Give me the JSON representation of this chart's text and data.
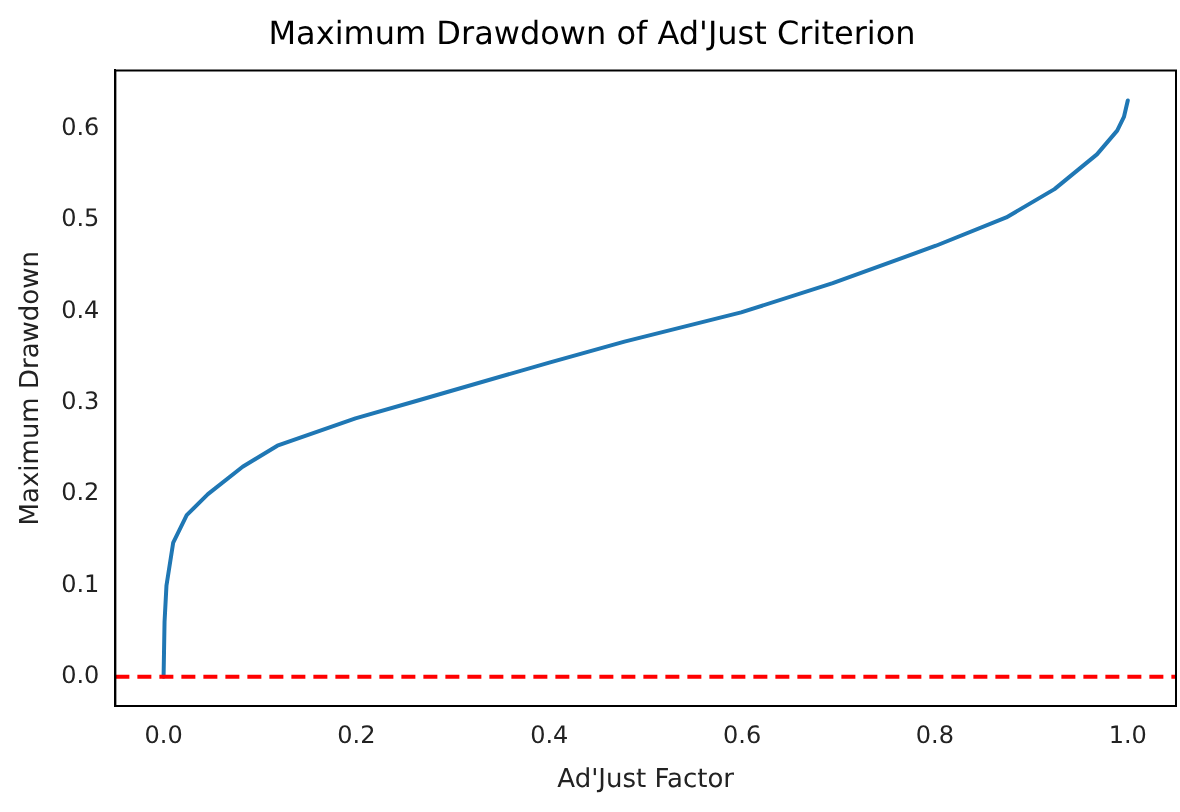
{
  "chart_data": {
    "type": "line",
    "title": "Maximum Drawdown of Ad'Just Criterion",
    "xlabel": "Ad'Just Factor",
    "ylabel": "Maximum Drawdown",
    "series": [
      {
        "color": "#1f77b4",
        "x": [
          0,
          0.001,
          0.003,
          0.01,
          0.024,
          0.046,
          0.082,
          0.118,
          0.199,
          0.262,
          0.4,
          0.478,
          0.599,
          0.694,
          0.801,
          0.874,
          0.924,
          0.968,
          0.989,
          0.996,
          1.0
        ],
        "values": [
          0,
          0.06,
          0.1,
          0.147,
          0.177,
          0.2,
          0.23,
          0.253,
          0.283,
          0.302,
          0.344,
          0.367,
          0.399,
          0.431,
          0.472,
          0.503,
          0.534,
          0.572,
          0.598,
          0.613,
          0.631
        ]
      }
    ],
    "xlim": [
      -0.05,
      1.05
    ],
    "ylim": [
      -0.032,
      0.664
    ],
    "xticks": [
      {
        "value": 0,
        "label": "0.0"
      },
      {
        "value": 0.2,
        "label": "0.2"
      },
      {
        "value": 0.4,
        "label": "0.4"
      },
      {
        "value": 0.6,
        "label": "0.6"
      },
      {
        "value": 0.8,
        "label": "0.8"
      },
      {
        "value": 1,
        "label": "1.0"
      }
    ],
    "yticks": [
      {
        "value": 0,
        "label": "0.0"
      },
      {
        "value": 0.1,
        "label": "0.1"
      },
      {
        "value": 0.2,
        "label": "0.2"
      },
      {
        "value": 0.3,
        "label": "0.3"
      },
      {
        "value": 0.4,
        "label": "0.4"
      },
      {
        "value": 0.5,
        "label": "0.5"
      },
      {
        "value": 0.6,
        "label": "0.6"
      }
    ],
    "ref_lines": [
      {
        "axis": "y",
        "value": 0,
        "color": "#ff0000",
        "line_style": "dashed"
      }
    ],
    "grid": false,
    "legend": false,
    "marker": "none",
    "line_style": "solid"
  }
}
